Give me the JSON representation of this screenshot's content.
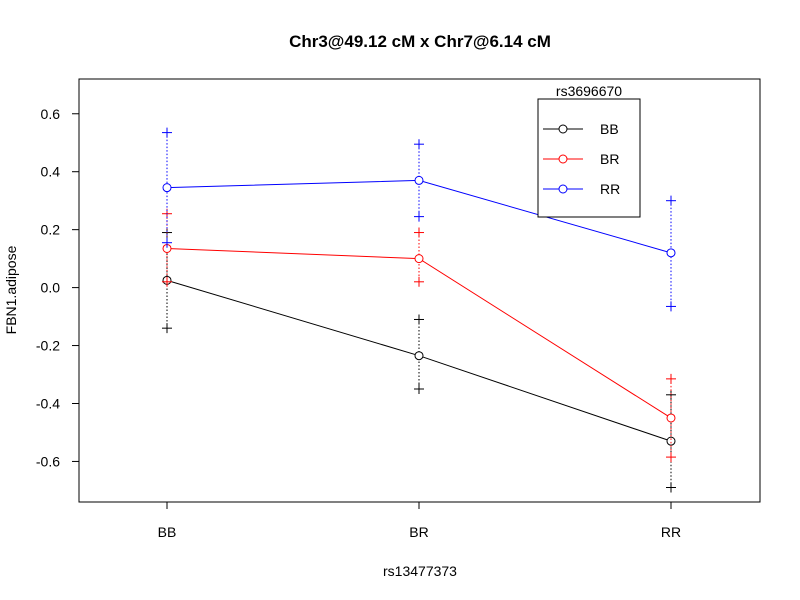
{
  "chart_data": {
    "type": "line",
    "title": "Chr3@49.12 cM x Chr7@6.14 cM",
    "xlabel": "rs13477373",
    "ylabel": "FBN1.adipose",
    "categories": [
      "BB",
      "BR",
      "RR"
    ],
    "ylim": [
      -0.74,
      0.72
    ],
    "yticks": [
      -0.6,
      -0.4,
      -0.2,
      0.0,
      0.2,
      0.4,
      0.6
    ],
    "ytick_labels": [
      "-0.6",
      "-0.4",
      "-0.2",
      "0.0",
      "0.2",
      "0.4",
      "0.6"
    ],
    "legend": {
      "title": "rs3696670",
      "position": "top-right"
    },
    "series": [
      {
        "name": "BB",
        "color": "#000000",
        "values": [
          0.025,
          -0.235,
          -0.53
        ],
        "upper": [
          0.19,
          -0.11,
          -0.37
        ],
        "lower": [
          -0.14,
          -0.35,
          -0.69
        ]
      },
      {
        "name": "BR",
        "color": "#ff0000",
        "values": [
          0.135,
          0.1,
          -0.45
        ],
        "upper": [
          0.255,
          0.19,
          -0.315
        ],
        "lower": [
          0.02,
          0.02,
          -0.585
        ]
      },
      {
        "name": "RR",
        "color": "#0000ff",
        "values": [
          0.345,
          0.37,
          0.12
        ],
        "upper": [
          0.535,
          0.495,
          0.3
        ],
        "lower": [
          0.155,
          0.245,
          -0.065
        ]
      }
    ]
  }
}
